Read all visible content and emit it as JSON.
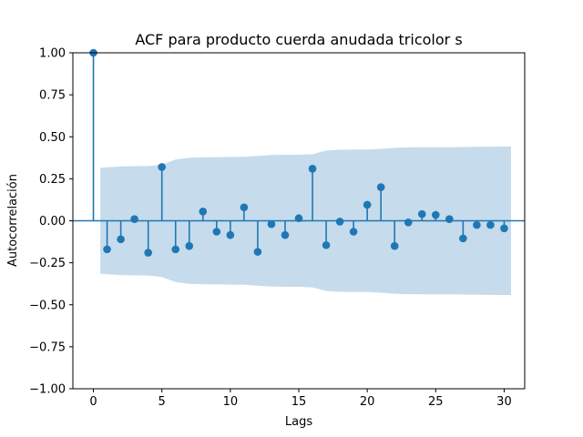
{
  "chart_data": {
    "type": "scatter",
    "title": "ACF para producto cuerda anudada tricolor s",
    "xlabel": "Lags",
    "ylabel": "Autocorrelación",
    "xlim": [
      -1.5,
      31.5
    ],
    "ylim": [
      -1.0,
      1.0
    ],
    "x_ticks": [
      0,
      5,
      10,
      15,
      20,
      25,
      30
    ],
    "y_ticks": [
      -1.0,
      -0.75,
      -0.5,
      -0.25,
      0.0,
      0.25,
      0.5,
      0.75,
      1.0
    ],
    "y_tick_labels": [
      "−1.00",
      "−0.75",
      "−0.50",
      "−0.25",
      "0.00",
      "0.25",
      "0.50",
      "0.75",
      "1.00"
    ],
    "lags": [
      0,
      1,
      2,
      3,
      4,
      5,
      6,
      7,
      8,
      9,
      10,
      11,
      12,
      13,
      14,
      15,
      16,
      17,
      18,
      19,
      20,
      21,
      22,
      23,
      24,
      25,
      26,
      27,
      28,
      29,
      30
    ],
    "acf": [
      1.0,
      -0.17,
      -0.11,
      0.01,
      -0.19,
      0.32,
      -0.17,
      -0.15,
      0.055,
      -0.065,
      -0.085,
      0.08,
      -0.185,
      -0.02,
      -0.085,
      0.015,
      0.31,
      -0.145,
      -0.005,
      -0.065,
      0.095,
      0.2,
      -0.15,
      -0.01,
      0.04,
      0.035,
      0.01,
      -0.105,
      -0.025,
      -0.025,
      -0.045
    ],
    "confint_x": [
      0.5,
      1,
      2,
      3,
      4,
      5,
      6,
      7,
      8,
      9,
      10,
      11,
      12,
      13,
      14,
      15,
      16,
      17,
      18,
      19,
      20,
      21,
      22,
      23,
      24,
      25,
      26,
      27,
      28,
      29,
      30,
      30.5
    ],
    "confint_upper": [
      0.315,
      0.318,
      0.323,
      0.325,
      0.326,
      0.335,
      0.365,
      0.375,
      0.378,
      0.379,
      0.38,
      0.381,
      0.386,
      0.392,
      0.393,
      0.393,
      0.396,
      0.418,
      0.423,
      0.424,
      0.424,
      0.428,
      0.434,
      0.437,
      0.438,
      0.438,
      0.438,
      0.439,
      0.44,
      0.441,
      0.442,
      0.442
    ],
    "series": [
      {
        "values": []
      }
    ],
    "colors": {
      "stem": "#1f77b4",
      "band": "#c6dbec"
    },
    "grid": false,
    "legend": "none"
  }
}
